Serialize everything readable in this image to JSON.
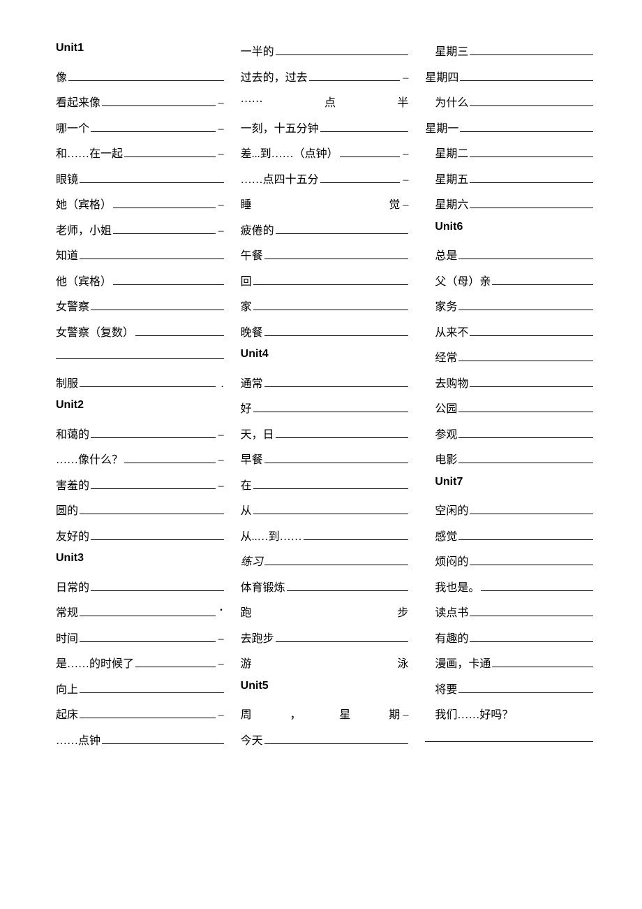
{
  "col1": [
    {
      "type": "unit",
      "text": "Unit1"
    },
    {
      "type": "item",
      "text": "像",
      "trail": ""
    },
    {
      "type": "item",
      "text": "看起来像",
      "trail": "–"
    },
    {
      "type": "item",
      "text": "哪一个",
      "trail": "–"
    },
    {
      "type": "item",
      "text": "和……在一起",
      "trail": "–"
    },
    {
      "type": "item",
      "text": "眼镜",
      "trail": ""
    },
    {
      "type": "item",
      "text": "她（宾格）",
      "trail": "–"
    },
    {
      "type": "item",
      "text": "老师，小姐",
      "trail": "–"
    },
    {
      "type": "item",
      "text": "知道",
      "trail": ""
    },
    {
      "type": "item",
      "text": "他（宾格）",
      "trail": ""
    },
    {
      "type": "item",
      "text": "女警察",
      "trail": ""
    },
    {
      "type": "item",
      "text": "女警察（复数）",
      "trail": ""
    },
    {
      "type": "blankline"
    },
    {
      "type": "item",
      "text": "制服",
      "trail": "."
    },
    {
      "type": "unit",
      "text": "Unit2"
    },
    {
      "type": "item",
      "text": "和蔼的",
      "trail": "–"
    },
    {
      "type": "item",
      "text": "……像什么？",
      "trail": "–"
    },
    {
      "type": "item",
      "text": "害羞的",
      "trail": "–"
    },
    {
      "type": "item",
      "text": "圆的",
      "trail": ""
    },
    {
      "type": "item",
      "text": "友好的",
      "trail": ""
    },
    {
      "type": "unit",
      "text": "Unit3"
    },
    {
      "type": "item",
      "text": "日常的",
      "trail": ""
    },
    {
      "type": "item-dot",
      "text": "常规",
      "trail": ""
    },
    {
      "type": "item",
      "text": "时间",
      "trail": "–"
    },
    {
      "type": "item",
      "text": "是……的时候了",
      "trail": "–"
    },
    {
      "type": "item",
      "text": "向上",
      "trail": ""
    },
    {
      "type": "item",
      "text": "起床",
      "trail": "–"
    },
    {
      "type": "item",
      "text": "……点钟",
      "trail": ""
    }
  ],
  "col2": [
    {
      "type": "item",
      "text": "一半的",
      "trail": ""
    },
    {
      "type": "item",
      "text": "过去的，过去",
      "trail": "–"
    },
    {
      "type": "justify",
      "parts": [
        "……",
        "点",
        "半"
      ],
      "trail": ""
    },
    {
      "type": "item",
      "text": "一刻，十五分钟",
      "trail": ""
    },
    {
      "type": "item",
      "text": "差...到……（点钟）",
      "trail": "–"
    },
    {
      "type": "item",
      "text": "……点四十五分",
      "trail": "–"
    },
    {
      "type": "justify",
      "parts": [
        "睡",
        "觉"
      ],
      "trail": "–"
    },
    {
      "type": "item",
      "text": "疲倦的",
      "trail": ""
    },
    {
      "type": "item",
      "text": "午餐",
      "trail": ""
    },
    {
      "type": "item",
      "text": "回",
      "trail": ""
    },
    {
      "type": "item",
      "text": "家",
      "trail": ""
    },
    {
      "type": "item",
      "text": "晚餐",
      "trail": ""
    },
    {
      "type": "unit",
      "text": "Unit4"
    },
    {
      "type": "item",
      "text": "通常",
      "trail": ""
    },
    {
      "type": "item",
      "text": "好",
      "trail": ""
    },
    {
      "type": "item",
      "text": "天，日",
      "trail": ""
    },
    {
      "type": "item",
      "text": "早餐",
      "trail": ""
    },
    {
      "type": "item",
      "text": "在",
      "trail": ""
    },
    {
      "type": "item",
      "text": "从",
      "trail": ""
    },
    {
      "type": "item",
      "text": "从..…到……",
      "trail": ""
    },
    {
      "type": "italic",
      "text": "练习",
      "trail": ""
    },
    {
      "type": "item",
      "text": "体育锻炼",
      "trail": ""
    },
    {
      "type": "justify",
      "parts": [
        "跑",
        "步"
      ],
      "trail": ""
    },
    {
      "type": "item",
      "text": "去跑步",
      "trail": ""
    },
    {
      "type": "justify",
      "parts": [
        "游",
        "泳"
      ],
      "trail": ""
    },
    {
      "type": "unit",
      "text": "Unit5"
    },
    {
      "type": "justify",
      "parts": [
        "周",
        "，",
        "星",
        "期"
      ],
      "trail": "–"
    },
    {
      "type": "item",
      "text": "今天",
      "trail": ""
    }
  ],
  "col3": [
    {
      "type": "item-lead",
      "text": "星期三",
      "trail": ""
    },
    {
      "type": "item-nolead",
      "text": "星期四",
      "trail": ""
    },
    {
      "type": "item-lead",
      "text": "为什么",
      "trail": ""
    },
    {
      "type": "item-nolead",
      "text": "星期一",
      "trail": ""
    },
    {
      "type": "item-lead",
      "text": "星期二",
      "trail": ""
    },
    {
      "type": "item-lead",
      "text": "星期五",
      "trail": ""
    },
    {
      "type": "item-lead",
      "text": "星期六",
      "trail": ""
    },
    {
      "type": "unit-lead",
      "text": "Unit6"
    },
    {
      "type": "item-lead",
      "text": "总是",
      "trail": ""
    },
    {
      "type": "item-lead",
      "text": "父（母）亲",
      "trail": ""
    },
    {
      "type": "item-lead",
      "text": "家务",
      "trail": ""
    },
    {
      "type": "item-lead",
      "text": "从来不",
      "trail": ""
    },
    {
      "type": "item-lead",
      "text": "经常",
      "trail": ""
    },
    {
      "type": "item-lead",
      "text": "去购物",
      "trail": ""
    },
    {
      "type": "item-lead",
      "text": "公园",
      "trail": ""
    },
    {
      "type": "item-lead",
      "text": "参观",
      "trail": ""
    },
    {
      "type": "item-lead",
      "text": "电影",
      "trail": ""
    },
    {
      "type": "unit-lead",
      "text": "Unit7"
    },
    {
      "type": "item-lead",
      "text": "空闲的",
      "trail": ""
    },
    {
      "type": "item-lead",
      "text": "感觉",
      "trail": ""
    },
    {
      "type": "item-lead",
      "text": "烦闷的",
      "trail": ""
    },
    {
      "type": "item-lead",
      "text": "我也是。",
      "trail": ""
    },
    {
      "type": "item-lead",
      "text": "读点书",
      "trail": ""
    },
    {
      "type": "item-lead",
      "text": "有趣的",
      "trail": ""
    },
    {
      "type": "item-lead",
      "text": "漫画，卡通",
      "trail": ""
    },
    {
      "type": "item-lead",
      "text": "将要",
      "trail": ""
    },
    {
      "type": "plain-lead",
      "text": "我们……好吗？"
    },
    {
      "type": "blankline"
    }
  ]
}
